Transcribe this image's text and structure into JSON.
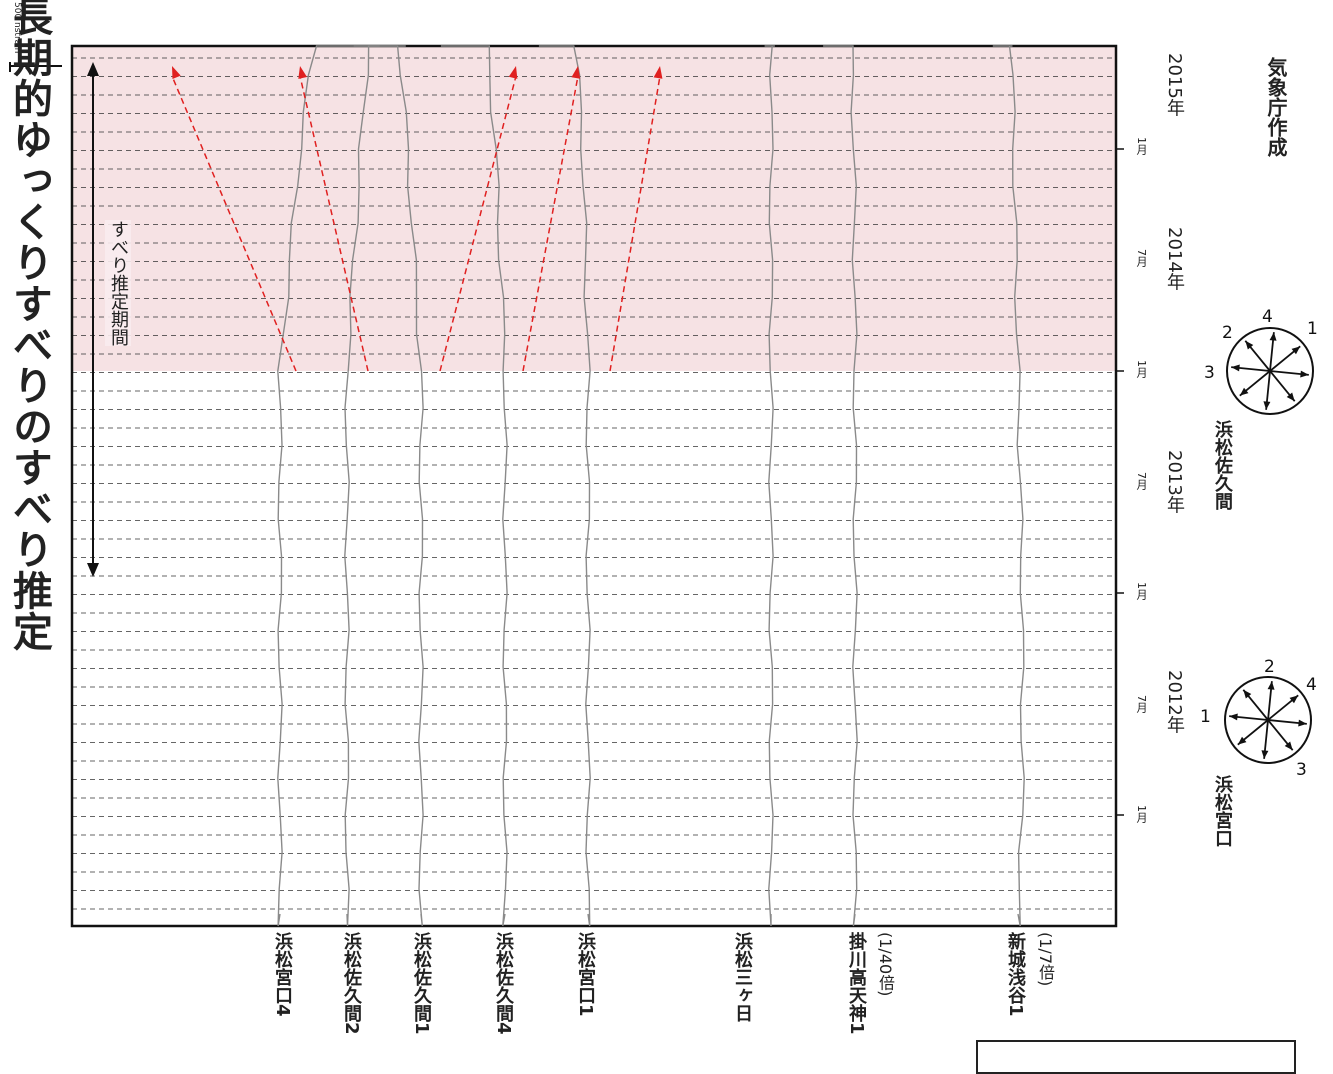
{
  "title": "長期的ゆっくりすべりのすべり推定",
  "agency": "気象庁作成",
  "scale_label": "500 nstrain",
  "period_label": "すべり推定期間",
  "colors": {
    "shade": "#f6e2e4",
    "trace": "#8a8a8a",
    "arrow": "#e02020",
    "grid": "#333333",
    "frame": "#111111"
  },
  "time_axis": {
    "years": [
      "2012年",
      "2013年",
      "2014年",
      "2015年"
    ],
    "month_labels": [
      "1月",
      "7月",
      "1月",
      "7月",
      "1月",
      "7月",
      "1月"
    ]
  },
  "stations": [
    {
      "name": "浜松宮口4",
      "note": ""
    },
    {
      "name": "浜松佐久間2",
      "note": ""
    },
    {
      "name": "浜松佐久間1",
      "note": ""
    },
    {
      "name": "浜松佐久間4",
      "note": ""
    },
    {
      "name": "浜松宮口1",
      "note": ""
    },
    {
      "name": "浜松三ヶ日",
      "note": ""
    },
    {
      "name": "掛川高天神1",
      "note": "(1/40倍)"
    },
    {
      "name": "新城浅谷1",
      "note": "(1/7倍)"
    }
  ],
  "compasses": [
    {
      "name": "浜松宮口",
      "labels": [
        "1",
        "2",
        "3",
        "4"
      ]
    },
    {
      "name": "浜松佐久間",
      "labels": [
        "1",
        "2",
        "3",
        "4"
      ]
    }
  ],
  "chart_data": {
    "type": "line",
    "x": [
      "2011-10",
      "2012-01",
      "2012-07",
      "2013-01",
      "2013-07",
      "2014-01",
      "2014-07",
      "2015-01",
      "2015-07"
    ],
    "slip_estimation_period": [
      "2013-01",
      "2015-07"
    ],
    "series": [
      {
        "name": "浜松宮口4",
        "values": [
          0,
          0,
          0,
          0,
          95,
          235,
          345,
          440,
          475
        ]
      },
      {
        "name": "浜松佐久間2",
        "values": [
          0,
          0,
          0,
          0,
          65,
          145,
          215,
          265,
          280
        ]
      },
      {
        "name": "浜松佐久間1",
        "values": [
          0,
          0,
          0,
          0,
          -65,
          -145,
          -235,
          -300,
          -320
        ]
      },
      {
        "name": "浜松佐久間4",
        "values": [
          0,
          0,
          0,
          0,
          -45,
          -125,
          -210,
          -275,
          -300
        ]
      },
      {
        "name": "浜松宮口1",
        "values": [
          0,
          0,
          0,
          0,
          -25,
          -95,
          -165,
          -210,
          -230
        ]
      },
      {
        "name": "浜松三ヶ日",
        "values": [
          0,
          0,
          0,
          0,
          0,
          12,
          -12,
          -15,
          -30
        ]
      },
      {
        "name": "掛川高天神1",
        "values": [
          0,
          0,
          0,
          0,
          -5,
          -30,
          -80,
          -125,
          -145
        ]
      },
      {
        "name": "新城浅谷1",
        "values": [
          0,
          20,
          20,
          0,
          -20,
          -40,
          -65,
          -95,
          -120
        ]
      }
    ]
  }
}
